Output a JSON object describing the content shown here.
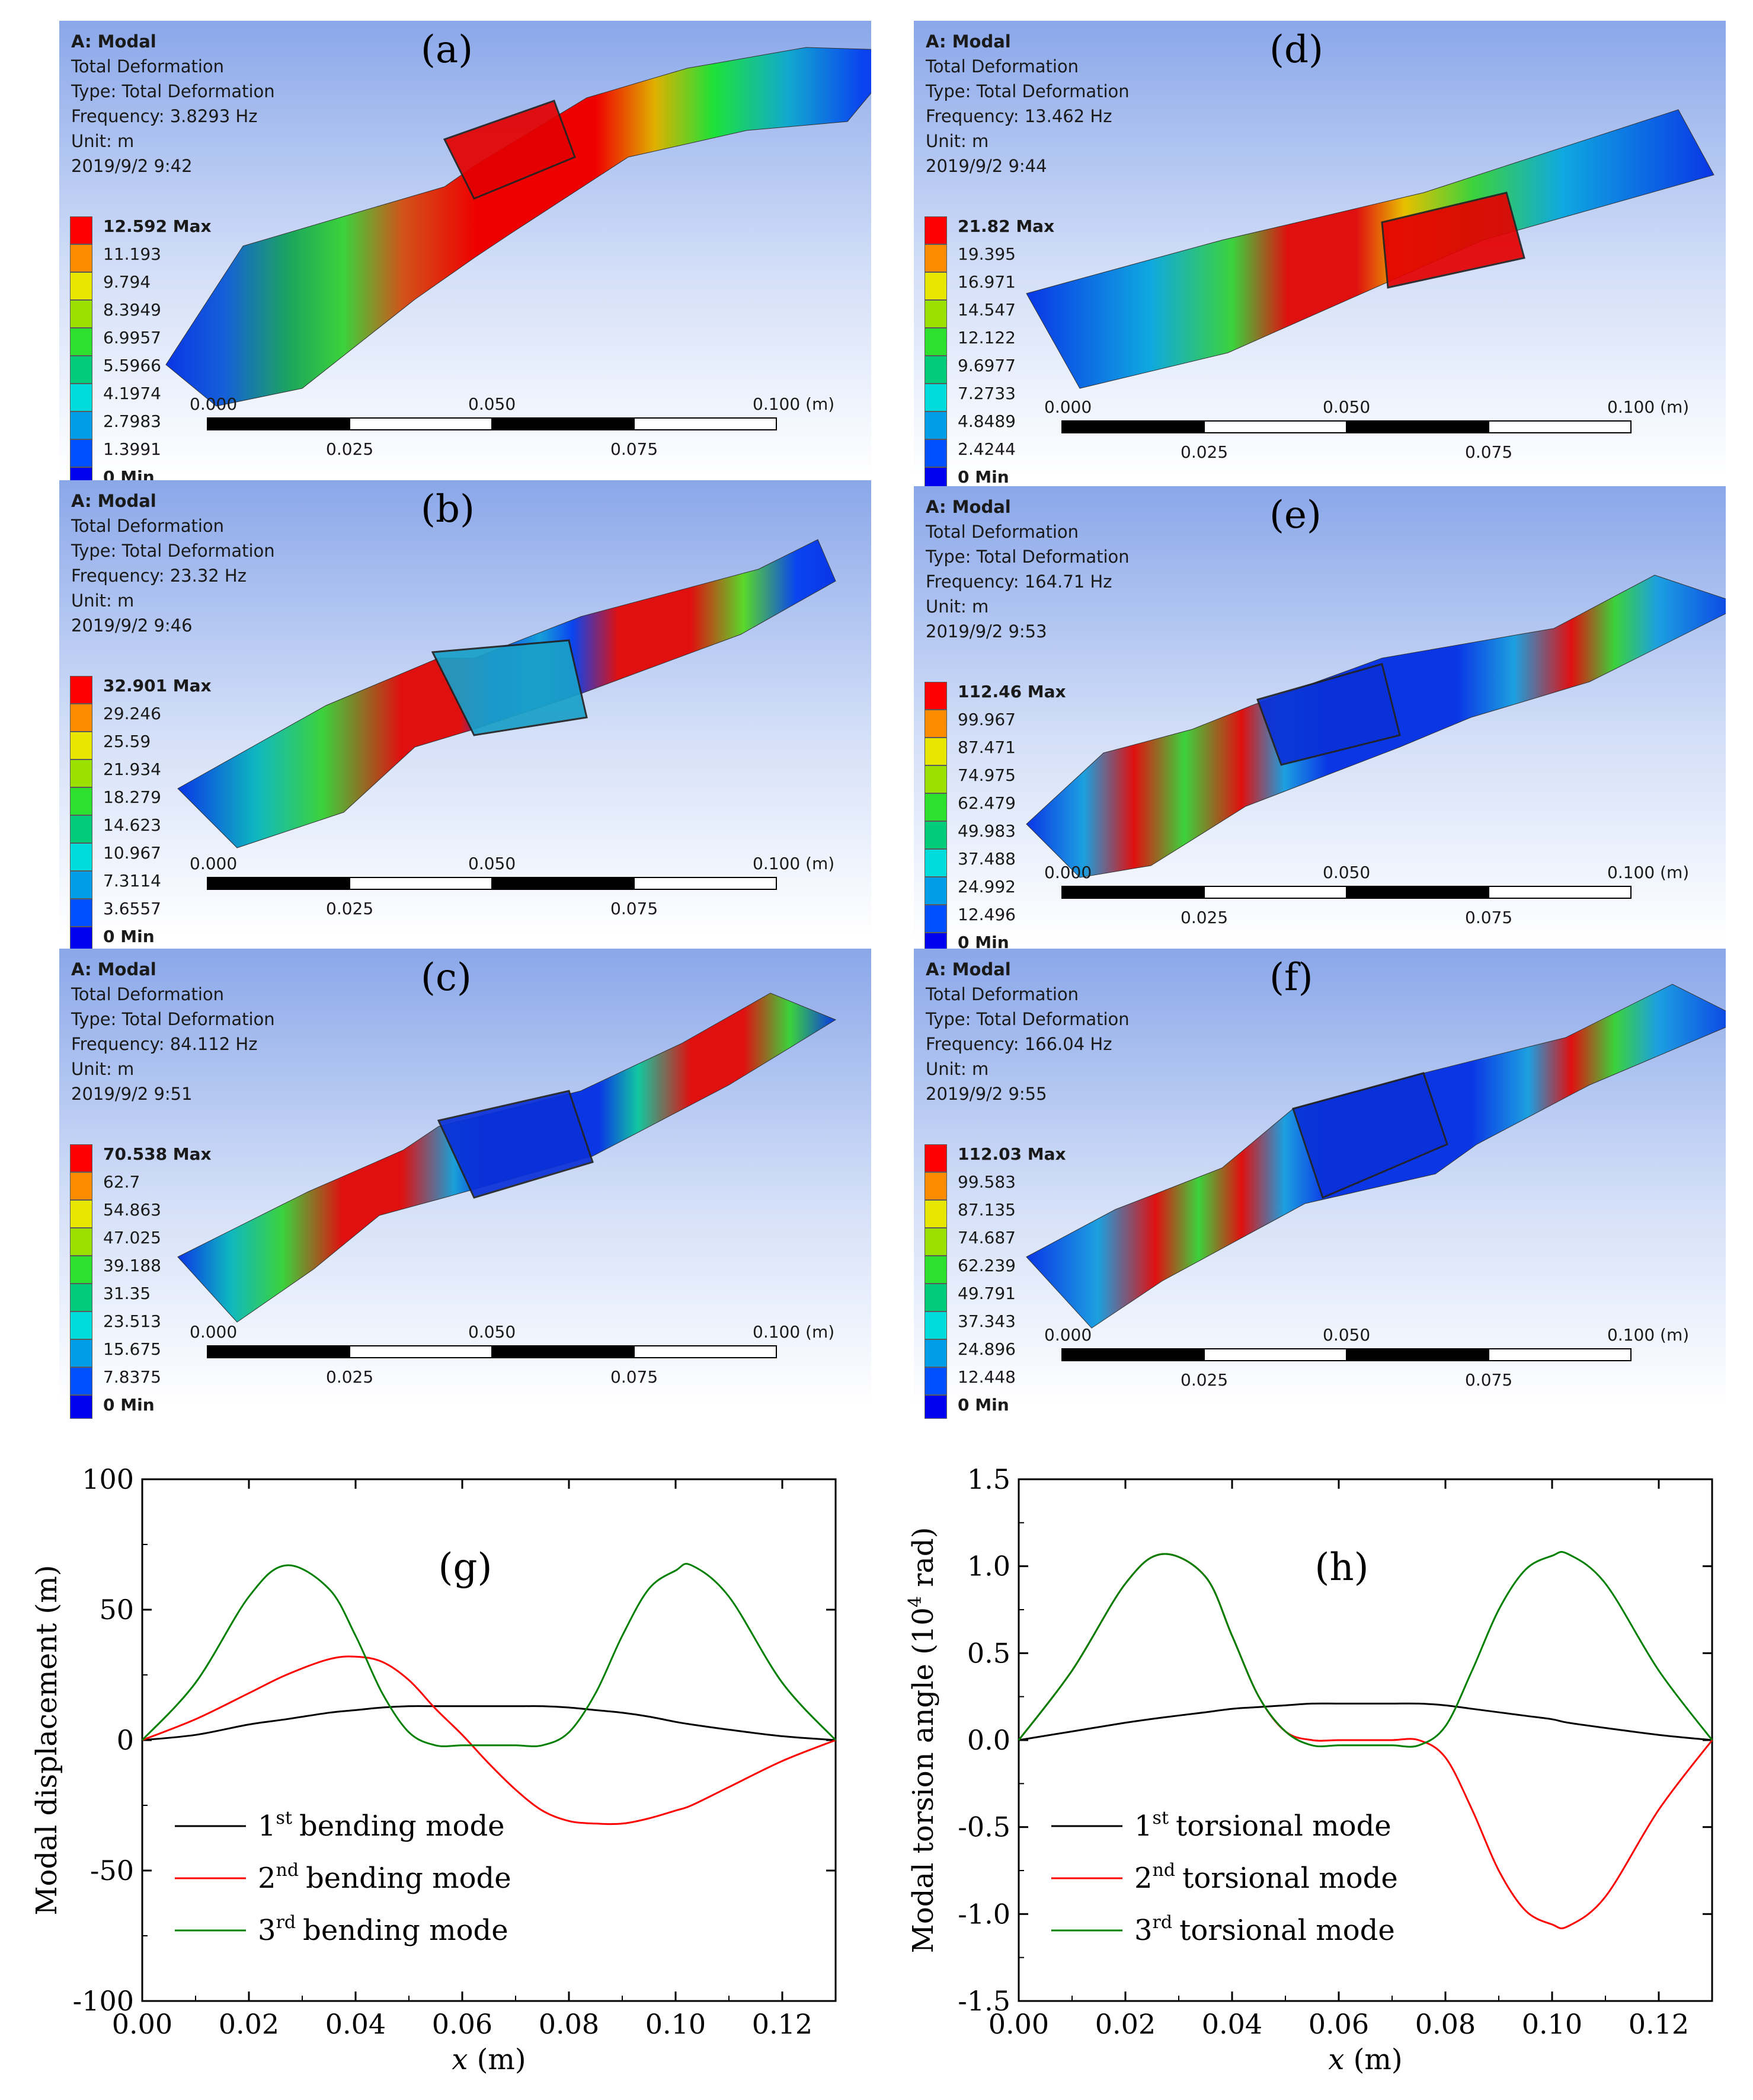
{
  "panels": [
    {
      "id": "a",
      "label": "(a)",
      "title": "A: Modal",
      "line1": "Total Deformation",
      "line2": "Type: Total Deformation",
      "freq": "Frequency: 3.8293 Hz",
      "unit": "Unit: m",
      "date": "2019/9/2 9:42",
      "legend": [
        "12.592 Max",
        "11.193",
        "9.794",
        "8.3949",
        "6.9957",
        "5.5966",
        "4.1974",
        "2.7983",
        "1.3991",
        "0 Min"
      ]
    },
    {
      "id": "b",
      "label": "(b)",
      "title": "A: Modal",
      "line1": "Total Deformation",
      "line2": "Type: Total Deformation",
      "freq": "Frequency: 23.32 Hz",
      "unit": "Unit: m",
      "date": "2019/9/2 9:46",
      "legend": [
        "32.901 Max",
        "29.246",
        "25.59",
        "21.934",
        "18.279",
        "14.623",
        "10.967",
        "7.3114",
        "3.6557",
        "0 Min"
      ]
    },
    {
      "id": "c",
      "label": "(c)",
      "title": "A: Modal",
      "line1": "Total Deformation",
      "line2": "Type: Total Deformation",
      "freq": "Frequency: 84.112 Hz",
      "unit": "Unit: m",
      "date": "2019/9/2 9:51",
      "legend": [
        "70.538 Max",
        "62.7",
        "54.863",
        "47.025",
        "39.188",
        "31.35",
        "23.513",
        "15.675",
        "7.8375",
        "0 Min"
      ]
    },
    {
      "id": "d",
      "label": "(d)",
      "title": "A: Modal",
      "line1": "Total Deformation",
      "line2": "Type: Total Deformation",
      "freq": "Frequency: 13.462 Hz",
      "unit": "Unit: m",
      "date": "2019/9/2 9:44",
      "legend": [
        "21.82 Max",
        "19.395",
        "16.971",
        "14.547",
        "12.122",
        "9.6977",
        "7.2733",
        "4.8489",
        "2.4244",
        "0 Min"
      ]
    },
    {
      "id": "e",
      "label": "(e)",
      "title": "A: Modal",
      "line1": "Total Deformation",
      "line2": "Type: Total Deformation",
      "freq": "Frequency: 164.71 Hz",
      "unit": "Unit: m",
      "date": "2019/9/2 9:53",
      "legend": [
        "112.46 Max",
        "99.967",
        "87.471",
        "74.975",
        "62.479",
        "49.983",
        "37.488",
        "24.992",
        "12.496",
        "0 Min"
      ]
    },
    {
      "id": "f",
      "label": "(f)",
      "title": "A: Modal",
      "line1": "Total Deformation",
      "line2": "Type: Total Deformation",
      "freq": "Frequency: 166.04 Hz",
      "unit": "Unit: m",
      "date": "2019/9/2 9:55",
      "legend": [
        "112.03 Max",
        "99.583",
        "87.135",
        "74.687",
        "62.239",
        "49.791",
        "37.343",
        "24.896",
        "12.448",
        "0 Min"
      ]
    }
  ],
  "scale_bar": {
    "top": [
      "0.000",
      "0.050",
      "0.100 (m)"
    ],
    "bottom": [
      "0.025",
      "0.075"
    ]
  },
  "legend_colors": [
    "#ff0000",
    "#ff8c00",
    "#e6e600",
    "#9ae000",
    "#2ee02e",
    "#00cc7a",
    "#00dcdc",
    "#009ee8",
    "#0050ff"
  ],
  "chart_data": [
    {
      "type": "line",
      "label": "(g)",
      "xlabel": "x",
      "xunit": " (m)",
      "ylabel": "Modal displacement (m)",
      "xlim": [
        0,
        0.13
      ],
      "ylim": [
        -100,
        100
      ],
      "xticks": [
        "0.00",
        "0.02",
        "0.04",
        "0.06",
        "0.08",
        "0.10",
        "0.12"
      ],
      "yticks": [
        "100",
        "50",
        "0",
        "-50",
        "-100"
      ],
      "x": [
        0,
        0.01,
        0.02,
        0.027,
        0.035,
        0.04,
        0.045,
        0.05,
        0.055,
        0.06,
        0.065,
        0.07,
        0.075,
        0.08,
        0.085,
        0.09,
        0.095,
        0.1,
        0.103,
        0.11,
        0.12,
        0.13
      ],
      "series": [
        {
          "order": "1",
          "sup": "st",
          "name": "bending mode",
          "color": "#000000",
          "values": [
            0,
            2,
            6,
            8,
            10.5,
            11.5,
            12.5,
            13,
            13,
            13,
            13,
            13,
            13,
            12.5,
            11.5,
            10.5,
            9,
            7,
            6,
            4,
            1.5,
            0
          ]
        },
        {
          "order": "2",
          "sup": "nd",
          "name": "bending mode",
          "color": "#ff0000",
          "values": [
            0,
            8,
            18,
            25,
            31,
            32,
            30,
            23,
            12,
            2,
            -9,
            -19,
            -27,
            -31,
            -32,
            -32,
            -30,
            -27,
            -25,
            -18,
            -8,
            0
          ]
        },
        {
          "order": "3",
          "sup": "rd",
          "name": "bending mode",
          "color": "#008000",
          "values": [
            0,
            22,
            55,
            67,
            58,
            40,
            18,
            3,
            -2,
            -2,
            -2,
            -2,
            -2,
            3,
            18,
            40,
            58,
            65,
            67,
            55,
            22,
            0
          ]
        }
      ]
    },
    {
      "type": "line",
      "label": "(h)",
      "xlabel": "x",
      "xunit": " (m)",
      "ylabel_pre": "Modal torsion angle (10",
      "ylabel_sup": "4",
      "ylabel_post": " rad)",
      "xlim": [
        0,
        0.13
      ],
      "ylim": [
        -1.5,
        1.5
      ],
      "xticks": [
        "0.00",
        "0.02",
        "0.04",
        "0.06",
        "0.08",
        "0.10",
        "0.12"
      ],
      "yticks": [
        "1.5",
        "1.0",
        "0.5",
        "0.0",
        "-0.5",
        "-1.0",
        "-1.5"
      ],
      "x": [
        0,
        0.01,
        0.02,
        0.027,
        0.035,
        0.04,
        0.045,
        0.05,
        0.055,
        0.06,
        0.065,
        0.07,
        0.075,
        0.08,
        0.085,
        0.09,
        0.095,
        0.1,
        0.103,
        0.11,
        0.12,
        0.13
      ],
      "series": [
        {
          "order": "1",
          "sup": "st",
          "name": "torsional mode",
          "color": "#000000",
          "values": [
            0,
            0.05,
            0.1,
            0.13,
            0.16,
            0.18,
            0.19,
            0.2,
            0.21,
            0.21,
            0.21,
            0.21,
            0.21,
            0.2,
            0.18,
            0.16,
            0.14,
            0.12,
            0.1,
            0.07,
            0.03,
            0
          ]
        },
        {
          "order": "2",
          "sup": "nd",
          "name": "torsional mode",
          "color": "#ff0000",
          "values": [
            0,
            0.4,
            0.9,
            1.07,
            0.94,
            0.6,
            0.25,
            0.05,
            0,
            0,
            0,
            0,
            0,
            -0.1,
            -0.4,
            -0.75,
            -0.98,
            -1.06,
            -1.07,
            -0.9,
            -0.4,
            0
          ]
        },
        {
          "order": "3",
          "sup": "rd",
          "name": "torsional mode",
          "color": "#008000",
          "values": [
            0,
            0.4,
            0.9,
            1.07,
            0.94,
            0.6,
            0.25,
            0.05,
            -0.03,
            -0.03,
            -0.03,
            -0.03,
            -0.03,
            0.08,
            0.4,
            0.75,
            0.98,
            1.06,
            1.07,
            0.9,
            0.4,
            0
          ]
        }
      ]
    }
  ]
}
